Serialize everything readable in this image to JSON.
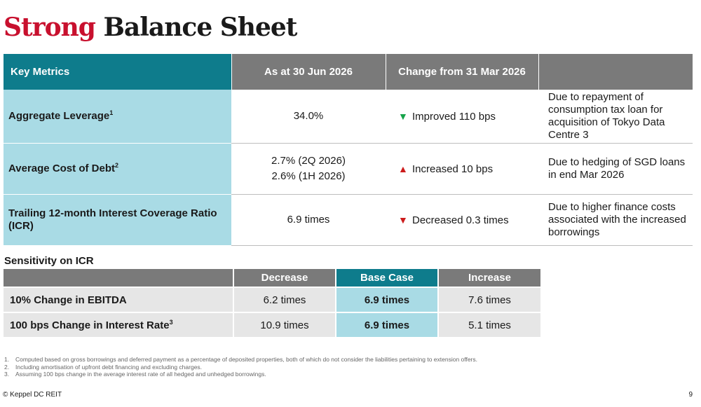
{
  "title": {
    "part1": "Strong",
    "part2": "Balance Sheet"
  },
  "metrics_table": {
    "headers": [
      "Key Metrics",
      "As at 30 Jun 2026",
      "Change from 31 Mar 2026",
      ""
    ],
    "rows": [
      {
        "label": "Aggregate Leverage",
        "label_sup": "1",
        "value_lines": [
          "34.0%"
        ],
        "change_arrow": "▼",
        "change": "Improved 110 bps",
        "note": "Due to repayment of consumption tax loan for acquisition of Tokyo Data Centre 3"
      },
      {
        "label": "Average Cost of Debt",
        "label_sup": "2",
        "value_lines": [
          "2.7% (2Q 2026)",
          "2.6% (1H 2026)"
        ],
        "change_arrow": "▲",
        "change": "Increased 10 bps",
        "note": "Due to hedging of SGD loans in end Mar 2026"
      },
      {
        "label": "Trailing 12-month Interest Coverage Ratio (ICR)",
        "label_sup": "",
        "value_lines": [
          "6.9 times"
        ],
        "change_arrow": "▼",
        "change": "Decreased 0.3 times",
        "note": "Due to higher finance costs associated with the increased borrowings"
      }
    ]
  },
  "sensitivity": {
    "heading": "Sensitivity on ICR",
    "headers": [
      "",
      "Decrease",
      "Base Case",
      "Increase"
    ],
    "rows": [
      {
        "label": "10% Change in EBITDA",
        "label_sup": "",
        "decrease": "6.2 times",
        "base": "6.9 times",
        "increase": "7.6 times"
      },
      {
        "label": "100 bps Change in Interest Rate",
        "label_sup": "3",
        "decrease": "10.9 times",
        "base": "6.9 times",
        "increase": "5.1 times"
      }
    ]
  },
  "footnotes": [
    {
      "num": "1.",
      "text": "Computed based on gross borrowings and deferred payment as a percentage of deposited properties, both of which do not consider the  liabilities pertaining to extension offers."
    },
    {
      "num": "2.",
      "text": "Including amortisation of upfront debt financing and excluding  charges."
    },
    {
      "num": "3.",
      "text": "Assuming 100 bps change in the average interest rate of all hedged and unhedged borrowings."
    }
  ],
  "footer": {
    "copyright": "© Keppel DC REIT",
    "page": "9"
  },
  "colors": {
    "teal": "#0e7c8c",
    "light_teal": "#a9dbe5",
    "header_grey": "#7a7a7a",
    "title_red": "#c8102e",
    "arrow_green": "#16a34a",
    "arrow_red": "#cc1b1b"
  }
}
